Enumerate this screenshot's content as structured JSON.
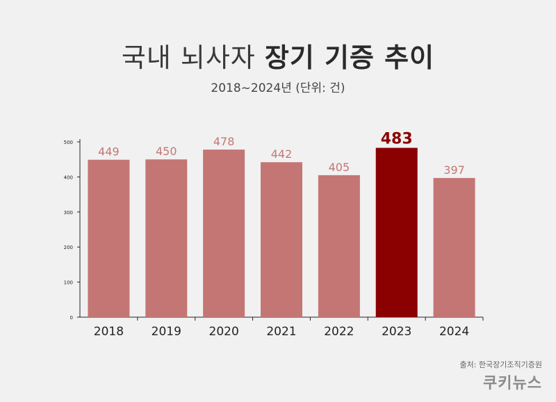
{
  "header": {
    "title_light": "국내 뇌사자",
    "title_bold": "장기 기증 추이",
    "subtitle": "2018~2024년 (단위: 건)"
  },
  "footer": {
    "source": "출처: 한국장기조직기증원",
    "brand": "쿠키뉴스"
  },
  "colors": {
    "bar": "#c47674",
    "highlight": "#8b0000",
    "label": "#c47674"
  },
  "chart_data": {
    "type": "bar",
    "categories": [
      "2018",
      "2019",
      "2020",
      "2021",
      "2022",
      "2023",
      "2024"
    ],
    "values": [
      449,
      450,
      478,
      442,
      405,
      483,
      397
    ],
    "ylim": [
      0,
      500
    ],
    "yticks": [
      0,
      100,
      200,
      300,
      400,
      500
    ],
    "highlight_index": 5,
    "grid": false,
    "legend": "none"
  }
}
